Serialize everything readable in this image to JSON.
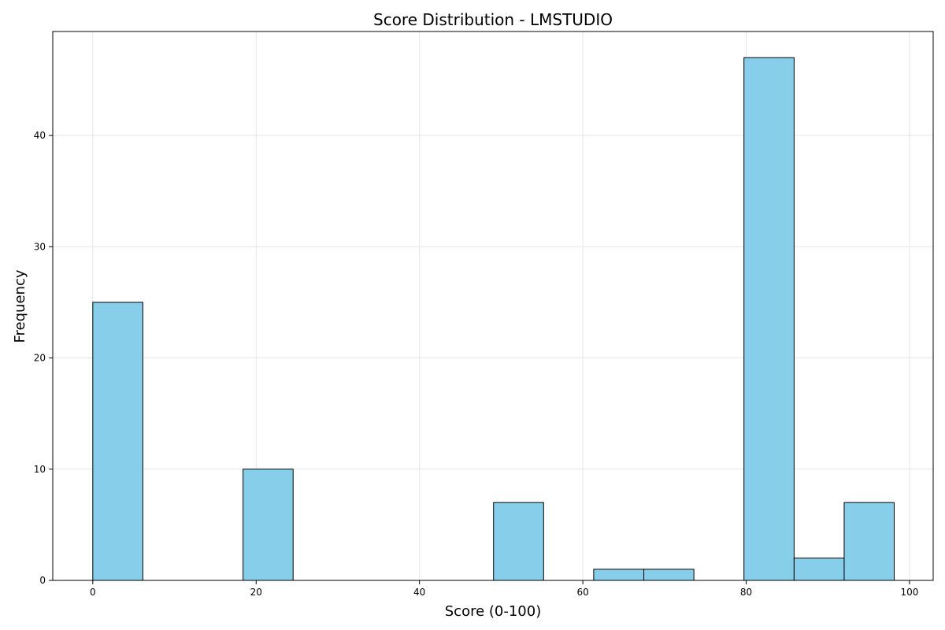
{
  "chart_data": {
    "type": "bar",
    "subtype": "histogram",
    "title": "Score Distribution - LMSTUDIO",
    "xlabel": "Score (0-100)",
    "ylabel": "Frequency",
    "xlim": [
      -4.9,
      102.9
    ],
    "ylim": [
      0,
      49.35
    ],
    "xticks": [
      0,
      20,
      40,
      60,
      80,
      100
    ],
    "yticks": [
      0,
      10,
      20,
      30,
      40
    ],
    "grid": true,
    "colors": {
      "bar_fill": "#87CEEB",
      "bar_edge": "#000000",
      "grid": "#e6e6e6"
    },
    "bins": [
      {
        "start": 0,
        "end": 6.13,
        "count": 25
      },
      {
        "start": 6.13,
        "end": 12.27,
        "count": 0
      },
      {
        "start": 12.27,
        "end": 18.4,
        "count": 0
      },
      {
        "start": 18.4,
        "end": 24.53,
        "count": 10
      },
      {
        "start": 24.53,
        "end": 30.67,
        "count": 0
      },
      {
        "start": 30.67,
        "end": 36.8,
        "count": 0
      },
      {
        "start": 36.8,
        "end": 42.93,
        "count": 0
      },
      {
        "start": 42.93,
        "end": 49.07,
        "count": 0
      },
      {
        "start": 49.07,
        "end": 55.2,
        "count": 7
      },
      {
        "start": 55.2,
        "end": 61.33,
        "count": 0
      },
      {
        "start": 61.33,
        "end": 67.47,
        "count": 1
      },
      {
        "start": 67.47,
        "end": 73.6,
        "count": 1
      },
      {
        "start": 73.6,
        "end": 79.73,
        "count": 0
      },
      {
        "start": 79.73,
        "end": 85.87,
        "count": 47
      },
      {
        "start": 85.87,
        "end": 92.0,
        "count": 2
      },
      {
        "start": 92.0,
        "end": 98.13,
        "count": 7
      }
    ]
  }
}
